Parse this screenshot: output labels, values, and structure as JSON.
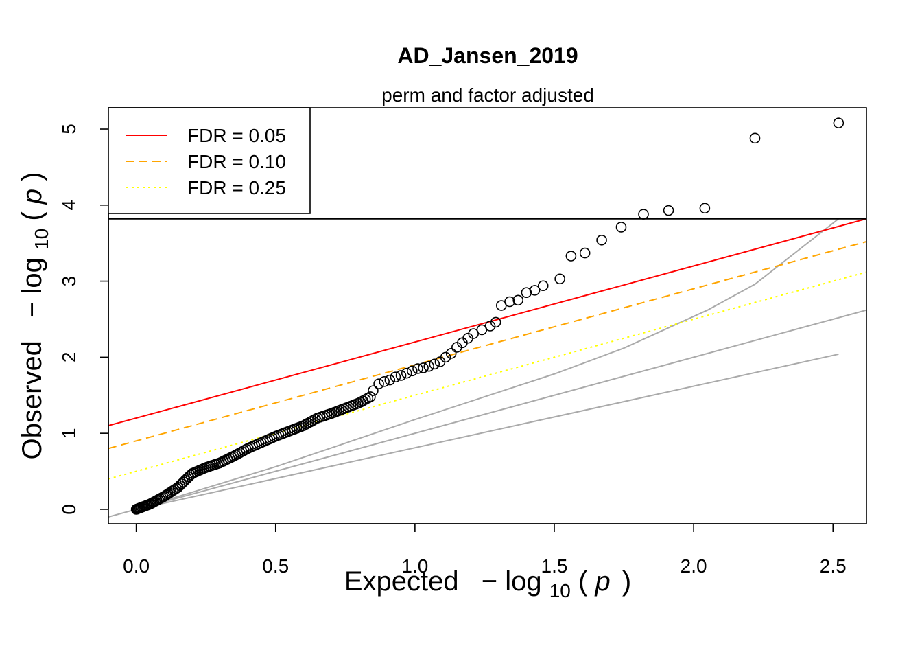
{
  "chart_data": {
    "type": "scatter",
    "title": "AD_Jansen_2019",
    "subtitle": "perm and factor adjusted",
    "xlabel": {
      "main": "Expected",
      "minus": "−",
      "log": "log",
      "sub": "10",
      "open": "(",
      "var": "p",
      "close": ")"
    },
    "ylabel": {
      "main": "Observed",
      "minus": "−",
      "log": "log",
      "sub": "10",
      "open": "(",
      "var": "p",
      "close": ")"
    },
    "xlim": [
      -0.1,
      2.62
    ],
    "ylim": [
      -0.19,
      5.28
    ],
    "xticks": [
      "0.0",
      "0.5",
      "1.0",
      "1.5",
      "2.0",
      "2.5"
    ],
    "yticks": [
      "0",
      "1",
      "2",
      "3",
      "4",
      "5"
    ],
    "grid": false,
    "legend": {
      "placement": "top-left",
      "entries": [
        {
          "label": "FDR = 0.05",
          "color": "#ff0000",
          "style": "solid"
        },
        {
          "label": "FDR = 0.10",
          "color": "#ffa500",
          "style": "dashed"
        },
        {
          "label": "FDR = 0.25",
          "color": "#ffff00",
          "style": "dotted"
        }
      ]
    },
    "threshold_lines": [
      {
        "name": "FDR = 0.05",
        "color": "#ff0000",
        "style": "solid",
        "intercept": 1.2,
        "slope": 1.0
      },
      {
        "name": "FDR = 0.10",
        "color": "#ffa500",
        "style": "dashed",
        "intercept": 0.9,
        "slope": 1.0
      },
      {
        "name": "FDR = 0.25",
        "color": "#ffff00",
        "style": "dotted",
        "intercept": 0.5,
        "slope": 1.0
      }
    ],
    "hline": {
      "y": 3.82,
      "color": "#000000"
    },
    "reference_lines": {
      "color": "#aaaaaa",
      "identity": {
        "x": [
          -0.1,
          2.62
        ],
        "y": [
          -0.1,
          2.62
        ]
      },
      "curves": [
        {
          "x": [
            0,
            0.5,
            1.0,
            1.5,
            1.75,
            2.05,
            2.22,
            2.52
          ],
          "y": [
            0,
            0.56,
            1.18,
            1.78,
            2.12,
            2.62,
            2.96,
            3.82
          ]
        },
        {
          "x": [
            0,
            2.52
          ],
          "y": [
            0,
            2.04
          ]
        }
      ]
    },
    "points_lower": {
      "n": 120,
      "x_start": 0.0,
      "x_end": 0.84,
      "x": [
        0.0,
        0.05,
        0.1,
        0.15,
        0.2,
        0.25,
        0.3,
        0.35,
        0.4,
        0.45,
        0.5,
        0.55,
        0.6,
        0.65,
        0.7,
        0.75,
        0.8,
        0.84
      ],
      "y": [
        0.0,
        0.07,
        0.17,
        0.29,
        0.47,
        0.55,
        0.61,
        0.7,
        0.8,
        0.88,
        0.96,
        1.03,
        1.1,
        1.2,
        1.26,
        1.33,
        1.4,
        1.48
      ]
    },
    "points_mid": {
      "x": [
        0.85,
        0.87,
        0.89,
        0.91,
        0.93,
        0.95,
        0.97,
        0.99,
        1.01,
        1.03,
        1.05,
        1.07,
        1.09,
        1.11,
        1.13,
        1.15,
        1.17,
        1.19,
        1.21,
        1.24,
        1.27,
        1.29
      ],
      "y": [
        1.56,
        1.65,
        1.68,
        1.7,
        1.74,
        1.76,
        1.79,
        1.82,
        1.85,
        1.86,
        1.88,
        1.91,
        1.94,
        2.0,
        2.05,
        2.13,
        2.19,
        2.25,
        2.31,
        2.36,
        2.41,
        2.46
      ]
    },
    "points_upper": {
      "x": [
        1.31,
        1.34,
        1.37,
        1.4,
        1.43,
        1.46,
        1.52,
        1.56,
        1.61,
        1.67,
        1.74,
        1.82,
        1.91,
        2.04,
        2.22,
        2.52
      ],
      "y": [
        2.68,
        2.73,
        2.75,
        2.85,
        2.88,
        2.94,
        3.03,
        3.33,
        3.37,
        3.54,
        3.71,
        3.88,
        3.93,
        3.96,
        4.88,
        5.08
      ]
    }
  }
}
